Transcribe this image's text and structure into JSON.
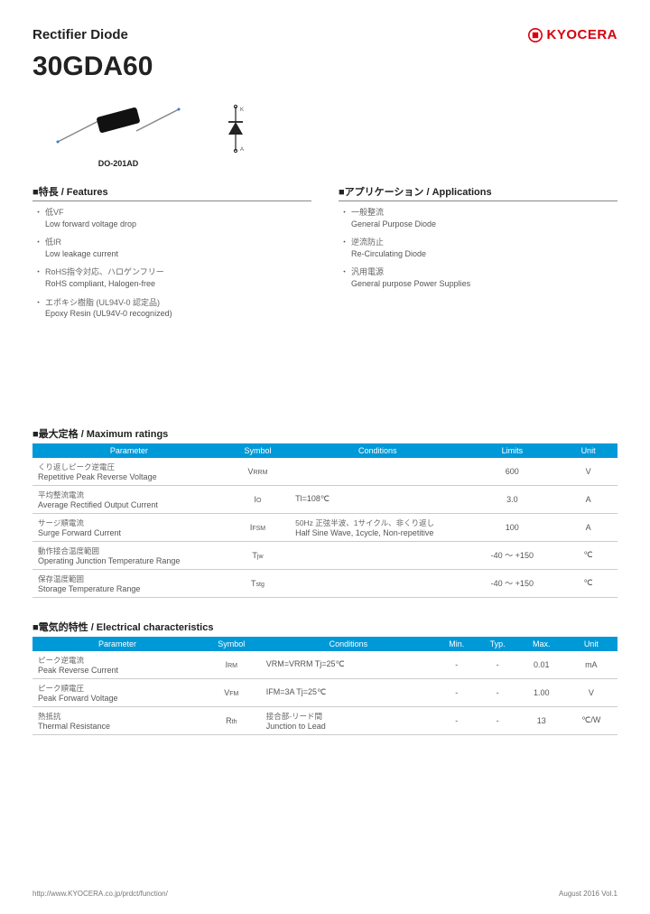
{
  "header": {
    "doc_type": "Rectifier Diode",
    "logo_text": "KYOCERA",
    "logo_color": "#d9000d"
  },
  "part_number": "30GDA60",
  "package_label": "DO-201AD",
  "features": {
    "title": "■特長 / Features",
    "items": [
      {
        "jp": "低VF",
        "en": "Low forward voltage drop"
      },
      {
        "jp": "低IR",
        "en": "Low leakage current"
      },
      {
        "jp": "RoHS指令対応、ハロゲンフリー",
        "en": "RoHS compliant, Halogen-free"
      },
      {
        "jp": "エポキシ樹脂 (UL94V-0 認定品)",
        "en": "Epoxy Resin (UL94V-0 recognized)"
      }
    ]
  },
  "applications": {
    "title": "■アプリケーション / Applications",
    "items": [
      {
        "jp": "一般整流",
        "en": "General Purpose Diode"
      },
      {
        "jp": "逆流防止",
        "en": "Re-Circulating Diode"
      },
      {
        "jp": "汎用電源",
        "en": "General purpose Power Supplies"
      }
    ]
  },
  "max_ratings": {
    "title": "■最大定格 / Maximum ratings",
    "columns": [
      "Parameter",
      "Symbol",
      "Conditions",
      "Limits",
      "Unit"
    ],
    "col_widths": [
      "33%",
      "11%",
      "30%",
      "16%",
      "10%"
    ],
    "header_bg": "#0099d8",
    "rows": [
      {
        "param_jp": "くり返しピーク逆電圧",
        "param_en": "Repetitive Peak Reverse Voltage",
        "symbol": "V",
        "sub": "RRM",
        "conditions": "",
        "limits": "600",
        "unit": "V"
      },
      {
        "param_jp": "平均整流電流",
        "param_en": "Average Rectified Output Current",
        "symbol": "I",
        "sub": "O",
        "conditions": "Tl=108℃",
        "limits": "3.0",
        "unit": "A"
      },
      {
        "param_jp": "サージ順電流",
        "param_en": "Surge Forward Current",
        "symbol": "I",
        "sub": "FSM",
        "conditions_jp": "50Hz 正弦半波、1サイクル、非くり返し",
        "conditions": "Half Sine Wave, 1cycle, Non-repetitive",
        "limits": "100",
        "unit": "A"
      },
      {
        "param_jp": "動作接合温度範囲",
        "param_en": "Operating Junction Temperature Range",
        "symbol": "T",
        "sub": "jw",
        "conditions": "",
        "limits": "-40 ～ +150",
        "unit": "℃"
      },
      {
        "param_jp": "保存温度範囲",
        "param_en": "Storage Temperature Range",
        "symbol": "T",
        "sub": "stg",
        "conditions": "",
        "limits": "-40 ～ +150",
        "unit": "℃"
      }
    ]
  },
  "electrical": {
    "title": "■電気的特性 / Electrical characteristics",
    "columns": [
      "Parameter",
      "Symbol",
      "Conditions",
      "Min.",
      "Typ.",
      "Max.",
      "Unit"
    ],
    "col_widths": [
      "29%",
      "10%",
      "30%",
      "7%",
      "7%",
      "8%",
      "9%"
    ],
    "header_bg": "#0099d8",
    "rows": [
      {
        "param_jp": "ピーク逆電流",
        "param_en": "Peak Reverse Current",
        "symbol": "I",
        "sub": "RM",
        "conditions": "VRM=VRRM   Tj=25℃",
        "min": "-",
        "typ": "-",
        "max": "0.01",
        "unit": "mA"
      },
      {
        "param_jp": "ピーク順電圧",
        "param_en": "Peak Forward Voltage",
        "symbol": "V",
        "sub": "FM",
        "conditions": "IFM=3A   Tj=25℃",
        "min": "-",
        "typ": "-",
        "max": "1.00",
        "unit": "V"
      },
      {
        "param_jp": "熱抵抗",
        "param_en": "Thermal Resistance",
        "symbol": "R",
        "sub": "th",
        "conditions_jp": "接合部-リード間",
        "conditions": "Junction to Lead",
        "min": "-",
        "typ": "-",
        "max": "13",
        "unit": "℃/W"
      }
    ]
  },
  "footer": {
    "url": "http://www.KYOCERA.co.jp/prdct/function/",
    "date": "August 2016  Vol.1"
  }
}
